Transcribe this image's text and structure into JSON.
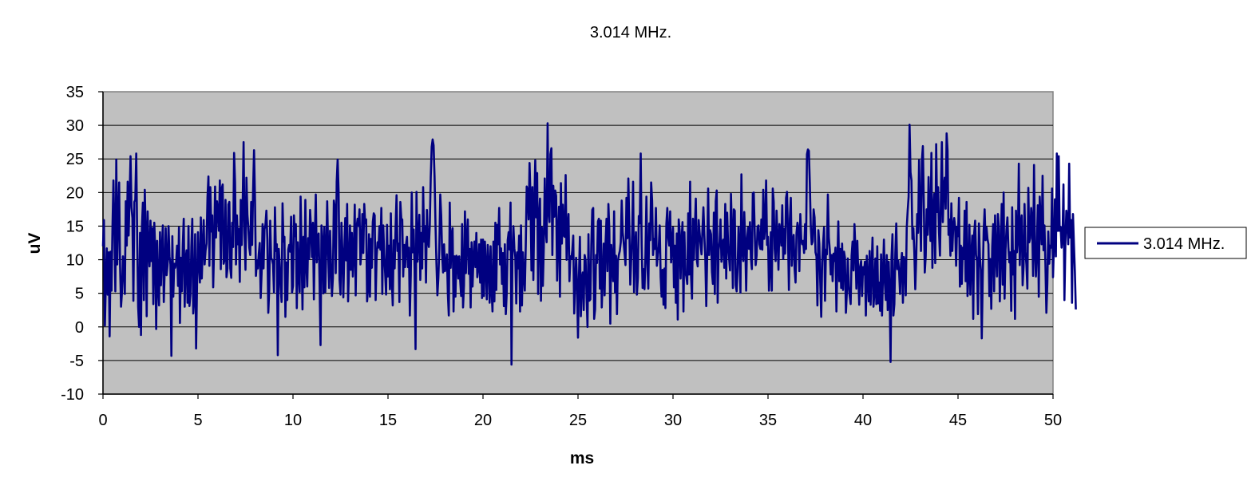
{
  "chart_data": {
    "type": "line",
    "title": "3.014 MHz.",
    "xlabel": "ms",
    "ylabel": "uV",
    "xlim": [
      0,
      50
    ],
    "ylim": [
      -10,
      35
    ],
    "x_ticks": [
      "0",
      "5",
      "10",
      "15",
      "20",
      "25",
      "30",
      "35",
      "40",
      "45",
      "50"
    ],
    "y_ticks": [
      "35",
      "30",
      "25",
      "20",
      "15",
      "10",
      "5",
      "0",
      "-5",
      "-10"
    ],
    "grid": "horizontal",
    "legend_position": "right",
    "plot_background": "#c0c0c0",
    "series": [
      {
        "name": "3.014 MHz.",
        "color": "#000080",
        "x_start": 0,
        "x_step": 0.05,
        "values": [
          12.0,
          15.9,
          0.2,
          6.6,
          11.7,
          4.8,
          11.1,
          -1.4,
          11.2,
          5.4,
          14.9,
          21.8,
          14.5,
          5.3,
          24.9,
          9.3,
          16.8,
          21.5,
          9.0,
          3.0,
          5.2,
          10.5,
          8.7,
          4.9,
          18.7,
          12.1,
          21.6,
          13.6,
          19.4,
          25.4,
          17.8,
          16.2,
          3.9,
          18.6,
          18.9,
          25.8,
          13.4,
          3.0,
          0.0,
          14.0,
          -1.2,
          14.9,
          18.5,
          4.0,
          20.4,
          13.7,
          1.6,
          17.2,
          11.6,
          9.0,
          15.8,
          9.8,
          14.7,
          3.4,
          15.5,
          11.5,
          -0.3,
          12.8,
          5.9,
          3.2,
          14.1,
          6.2,
          11.6,
          15.1,
          3.7,
          8.6,
          14.7,
          7.7,
          9.3,
          15.0,
          10.5,
          9.3,
          -4.3,
          13.5,
          4.5,
          9.4,
          8.8,
          9.6,
          12.1,
          6.1,
          14.8,
          0.6,
          10.3,
          5.3,
          12.2,
          16.1,
          3.0,
          10.1,
          11.4,
          3.6,
          15.0,
          3.1,
          4.8,
          11.9,
          16.1,
          2.0,
          4.3,
          13.8,
          -3.2,
          6.3,
          14.1,
          9.2,
          6.6,
          16.3,
          7.2,
          11.8,
          15.9,
          9.3,
          11.4,
          12.4,
          19.3,
          22.4,
          9.1,
          20.8,
          14.2,
          16.6,
          5.9,
          12.1,
          20.9,
          13.3,
          18.7,
          17.4,
          14.3,
          21.8,
          8.6,
          20.6,
          21.2,
          9.4,
          10.0,
          18.9,
          7.4,
          8.7,
          18.2,
          18.6,
          8.7,
          7.3,
          15.5,
          11.9,
          25.9,
          21.5,
          9.3,
          16.6,
          12.3,
          14.6,
          6.7,
          18.9,
          12.2,
          17.8,
          27.5,
          14.0,
          8.5,
          22.2,
          16.7,
          14.8,
          11.8,
          10.7,
          18.6,
          12.2,
          20.3,
          26.3,
          19.0,
          7.6,
          9.9,
          8.7,
          10.9,
          12.5,
          4.3,
          8.1,
          15.3,
          8.7,
          14.5,
          15.2,
          17.3,
          13.0,
          2.1,
          5.6,
          15.8,
          10.2,
          10.0,
          9.3,
          5.1,
          17.8,
          11.3,
          12.3,
          -4.2,
          11.6,
          9.3,
          5.9,
          3.7,
          18.4,
          12.7,
          13.4,
          1.5,
          9.6,
          4.0,
          11.5,
          12.2,
          11.2,
          16.4,
          5.1,
          6.1,
          16.6,
          13.5,
          15.3,
          2.8,
          12.6,
          7.9,
          5.2,
          19.4,
          11.4,
          2.6,
          13.4,
          5.9,
          18.9,
          9.2,
          6.0,
          13.2,
          10.1,
          17.4,
          14.6,
          10.4,
          15.5,
          4.1,
          13.6,
          19.7,
          9.6,
          13.5,
          13.9,
          6.4,
          -2.7,
          15.1,
          12.7,
          5.0,
          14.9,
          5.2,
          11.3,
          18.7,
          11.5,
          5.8,
          14.3,
          9.2,
          4.6,
          7.3,
          18.8,
          17.8,
          8.0,
          21.6,
          24.9,
          20.2,
          7.0,
          4.8,
          15.5,
          11.3,
          4.4,
          11.1,
          16.2,
          9.9,
          18.3,
          3.8,
          9.0,
          15.1,
          8.5,
          14.0,
          7.5,
          10.8,
          18.2,
          4.7,
          14.9,
          16.1,
          15.0,
          17.5,
          9.3,
          11.3,
          16.8,
          11.0,
          18.3,
          15.4,
          16.0,
          3.8,
          5.7,
          13.8,
          4.5,
          13.1,
          8.8,
          15.6,
          16.9,
          16.6,
          4.0,
          10.4,
          12.6,
          11.8,
          15.0,
          11.5,
          17.7,
          4.9,
          15.1,
          10.8,
          8.0,
          4.8,
          15.2,
          7.5,
          12.1,
          5.6,
          16.9,
          6.9,
          3.2,
          12.9,
          8.7,
          14.9,
          19.6,
          11.3,
          12.4,
          3.7,
          18.6,
          16.1,
          16.0,
          7.5,
          12.2,
          8.9,
          12.3,
          13.4,
          8.9,
          11.8,
          1.7,
          7.8,
          20.0,
          11.1,
          14.5,
          8.6,
          -3.3,
          20.1,
          9.7,
          13.2,
          16.7,
          7.0,
          14.0,
          8.7,
          20.8,
          12.7,
          15.0,
          6.6,
          17.4,
          13.0,
          11.9,
          15.2,
          22.3,
          26.8,
          27.9,
          27.0,
          22.4,
          15.2,
          9.4,
          4.7,
          7.3,
          11.6,
          19.7,
          16.6,
          10.8,
          8.1,
          12.3,
          8.3,
          9.1,
          10.8,
          4.9,
          1.7,
          18.5,
          8.8,
          13.6,
          14.7,
          2.3,
          10.5,
          4.5,
          10.6,
          10.4,
          7.2,
          10.5,
          6.9,
          4.6,
          15.3,
          2.9,
          6.2,
          17.2,
          8.0,
          13.3,
          16.0,
          7.9,
          11.6,
          2.9,
          12.6,
          6.0,
          10.4,
          12.7,
          8.9,
          14.0,
          7.4,
          8.8,
          12.3,
          6.6,
          13.0,
          4.3,
          13.0,
          4.6,
          12.7,
          9.1,
          4.1,
          12.2,
          9.5,
          3.6,
          12.0,
          5.6,
          2.3,
          12.7,
          3.8,
          15.5,
          5.5,
          15.2,
          12.3,
          17.7,
          9.3,
          11.7,
          6.4,
          11.0,
          3.1,
          12.3,
          1.9,
          5.1,
          12.9,
          14.1,
          11.5,
          18.5,
          -5.6,
          10.9,
          15.0,
          11.7,
          10.4,
          3.5,
          11.1,
          8.7,
          13.6,
          2.3,
          15.1,
          3.2,
          11.1,
          7.6,
          5.4,
          12.1,
          20.9,
          20.3,
          16.0,
          24.4,
          19.3,
          8.4,
          20.8,
          7.0,
          18.1,
          24.8,
          16.3,
          22.9,
          4.9,
          16.4,
          19.1,
          3.9,
          14.8,
          6.1,
          11.8,
          22.1,
          14.6,
          12.6,
          30.3,
          17.1,
          15.6,
          25.7,
          26.6,
          10.7,
          21.0,
          16.4,
          20.3,
          19.5,
          6.9,
          13.9,
          17.9,
          4.5,
          21.4,
          12.4,
          18.2,
          13.6,
          13.4,
          22.6,
          10.0,
          15.0,
          16.8,
          6.8,
          10.5,
          10.1,
          11.4,
          13.6,
          2.0,
          6.1,
          10.3,
          6.1,
          -1.6,
          7.5,
          13.4,
          1.6,
          7.1,
          8.1,
          2.5,
          10.7,
          9.9,
          4.6,
          0.0,
          13.8,
          3.9,
          4.1,
          12.1,
          17.4,
          17.7,
          1.2,
          2.6,
          10.7,
          9.5,
          15.7,
          16.1,
          5.7,
          15.8,
          2.9,
          7.2,
          12.4,
          4.7,
          12.5,
          16.1,
          8.3,
          18.3,
          14.4,
          0.5,
          12.2,
          9.9,
          6.8,
          17.2,
          5.1,
          10.6,
          1.9,
          9.8,
          10.7,
          11.3,
          12.6,
          18.8,
          14.1,
          12.7,
          11.0,
          9.2,
          19.2,
          13.2,
          22.1,
          15.0,
          6.3,
          10.0,
          13.9,
          21.6,
          5.2,
          11.9,
          14.1,
          4.8,
          7.3,
          16.5,
          15.4,
          25.8,
          12.3,
          5.8,
          8.6,
          5.6,
          10.7,
          19.4,
          9.4,
          5.7,
          15.4,
          12.9,
          21.5,
          18.8,
          10.7,
          13.1,
          11.6,
          17.7,
          9.1,
          10.8,
          11.9,
          15.1,
          7.4,
          4.5,
          8.5,
          3.3,
          8.7,
          2.8,
          15.3,
          17.7,
          13.3,
          12.1,
          17.2,
          9.6,
          12.8,
          14.8,
          5.9,
          12.1,
          3.6,
          13.9,
          1.1,
          16.0,
          14.2,
          7.2,
          12.9,
          15.6,
          2.3,
          14.1,
          8.1,
          7.5,
          6.4,
          16.9,
          7.8,
          21.6,
          7.5,
          4.2,
          16.1,
          10.0,
          14.7,
          19.1,
          10.0,
          9.0,
          15.9,
          14.0,
          12.3,
          10.8,
          14.5,
          17.8,
          13.6,
          10.2,
          3.1,
          10.7,
          20.6,
          10.7,
          14.4,
          13.8,
          8.2,
          6.4,
          17.0,
          4.9,
          18.7,
          20.3,
          3.6,
          11.4,
          12.7,
          16.0,
          9.7,
          12.5,
          13.0,
          8.8,
          18.3,
          7.2,
          17.0,
          12.2,
          10.3,
          8.4,
          19.8,
          14.2,
          5.8,
          17.5,
          17.3,
          6.2,
          5.3,
          8.7,
          14.9,
          11.4,
          5.1,
          22.7,
          11.3,
          9.8,
          17.1,
          12.8,
          5.4,
          13.1,
          14.8,
          11.6,
          15.6,
          10.3,
          8.6,
          19.9,
          20.0,
          14.1,
          9.2,
          10.6,
          14.9,
          15.1,
          12.3,
          11.6,
          16.0,
          11.5,
          20.4,
          13.1,
          14.9,
          21.8,
          12.2,
          13.4,
          5.4,
          8.8,
          14.1,
          5.4,
          20.6,
          18.6,
          11.6,
          9.8,
          17.3,
          13.1,
          8.5,
          15.3,
          14.2,
          12.1,
          18.1,
          10.1,
          14.6,
          10.9,
          19.2,
          20.1,
          13.8,
          5.5,
          16.1,
          19.2,
          9.1,
          12.6,
          13.7,
          8.6,
          6.6,
          14.0,
          15.5,
          14.7,
          8.3,
          16.8,
          13.0,
          12.3,
          12.8,
          11.0,
          15.3,
          11.6,
          25.7,
          26.4,
          26.2,
          21.4,
          15.1,
          12.3,
          12.7,
          17.5,
          16.3,
          11.1,
          10.5,
          3.2,
          14.4,
          12.4,
          6.6,
          1.5,
          9.6,
          12.5,
          14.8,
          3.9,
          11.5,
          10.8,
          19.7,
          13.3,
          11.5,
          7.8,
          10.7,
          6.8,
          10.9,
          9.8,
          11.8,
          2.3,
          9.7,
          15.7,
          6.8,
          11.6,
          5.8,
          12.4,
          5.5,
          11.2,
          10.3,
          2.1,
          5.2,
          10.2,
          6.0,
          4.6,
          3.4,
          10.6,
          12.7,
          8.4,
          15.3,
          11.5,
          5.7,
          12.8,
          8.0,
          3.3,
          9.0,
          9.8,
          4.6,
          8.9,
          7.8,
          9.7,
          1.7,
          10.6,
          7.2,
          3.8,
          11.3,
          3.3,
          8.7,
          13.3,
          3.0,
          5.1,
          10.2,
          3.4,
          12.0,
          3.5,
          6.6,
          2.4,
          10.8,
          1.7,
          7.9,
          13.0,
          6.5,
          4.0,
          10.7,
          2.5,
          9.7,
          5.4,
          -5.2,
          10.3,
          13.8,
          1.7,
          3.4,
          10.9,
          15.4,
          8.6,
          9.9,
          8.2,
          4.9,
          9.4,
          11.0,
          3.6,
          10.4,
          9.6,
          4.7,
          14.7,
          17.3,
          19.4,
          30.1,
          23.0,
          21.8,
          13.1,
          14.7,
          11.1,
          5.6,
          10.3,
          16.8,
          14.0,
          24.8,
          17.3,
          11.3,
          24.8,
          26.9,
          18.3,
          8.1,
          10.5,
          17.5,
          13.7,
          22.3,
          16.6,
          12.8,
          25.9,
          8.8,
          17.5,
          19.8,
          9.5,
          27.2,
          17.1,
          20.8,
          14.0,
          10.6,
          19.2,
          27.5,
          15.6,
          20.8,
          22.2,
          17.6,
          28.8,
          26.2,
          13.7,
          16.0,
          10.6,
          18.4,
          11.3,
          15.0,
          16.2,
          14.8,
          9.1,
          14.9,
          13.5,
          19.2,
          6.0,
          12.1,
          6.4,
          11.8,
          10.1,
          17.3,
          6.8,
          18.6,
          4.6,
          7.5,
          15.2,
          4.8,
          10.8,
          13.6,
          1.2,
          13.9,
          15.8,
          10.7,
          9.8,
          1.9,
          15.4,
          10.5,
          8.5,
          -1.7,
          7.2,
          14.3,
          17.5,
          12.9,
          14.8,
          13.1,
          12.3,
          4.6,
          10.1,
          2.7,
          11.9,
          15.3,
          5.3,
          16.6,
          10.6,
          7.5,
          16.8,
          14.7,
          3.8,
          11.7,
          18.3,
          6.3,
          20.0,
          4.2,
          11.5,
          14.5,
          16.3,
          11.9,
          9.6,
          11.1,
          2.4,
          17.8,
          7.8,
          11.3,
          1.2,
          17.3,
          11.1,
          12.9,
          24.3,
          9.2,
          15.2,
          16.6,
          6.2,
          9.0,
          18.3,
          11.2,
          9.2,
          5.7,
          20.7,
          12.6,
          13.2,
          17.7,
          16.0,
          7.6,
          24.1,
          11.3,
          7.5,
          12.0,
          18.1,
          4.5,
          19.4,
          15.7,
          12.3,
          22.5,
          11.4,
          15.1,
          9.3,
          2.1,
          6.4,
          14.2,
          9.4,
          12.1,
          11.8,
          20.6,
          7.4,
          12.6,
          19.0,
          10.5,
          25.8,
          14.3,
          25.4,
          14.3,
          14.9,
          11.8,
          13.4,
          21.2,
          4.0,
          12.4,
          17.3,
          15.7,
          12.3,
          24.3,
          13.3,
          15.9,
          3.6,
          16.8,
          12.3,
          8.2,
          2.6
        ]
      }
    ]
  }
}
